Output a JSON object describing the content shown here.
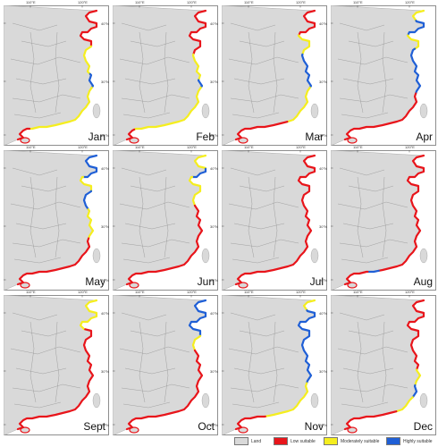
{
  "colors": {
    "land": "#d9d9d9",
    "sea": "#ffffff",
    "border": "#888888",
    "low": "#e8151b",
    "moderate": "#f5ee1f",
    "high": "#1f5fd6"
  },
  "axes": {
    "lon_ticks": [
      "110°E",
      "120°E"
    ],
    "lat_ticks": [
      "40°N",
      "30°N",
      "20°N"
    ]
  },
  "legend": [
    {
      "label": "Land",
      "color": "#d9d9d9"
    },
    {
      "label": "Low suitable",
      "color": "#e8151b"
    },
    {
      "label": "Moderately suitable",
      "color": "#f5ee1f"
    },
    {
      "label": "Highly suitable",
      "color": "#1f5fd6"
    }
  ],
  "panels": [
    {
      "month": "Jan",
      "segments": [
        {
          "class": "low",
          "from": 0,
          "to": 0.3
        },
        {
          "class": "moderate",
          "from": 0.3,
          "to": 0.45
        },
        {
          "class": "high",
          "from": 0.45,
          "to": 0.52
        },
        {
          "class": "moderate",
          "from": 0.52,
          "to": 0.9
        },
        {
          "class": "low",
          "from": 0.9,
          "to": 1
        }
      ]
    },
    {
      "month": "Feb",
      "segments": [
        {
          "class": "low",
          "from": 0,
          "to": 0.35
        },
        {
          "class": "moderate",
          "from": 0.35,
          "to": 0.48
        },
        {
          "class": "high",
          "from": 0.48,
          "to": 0.52
        },
        {
          "class": "moderate",
          "from": 0.52,
          "to": 0.92
        },
        {
          "class": "low",
          "from": 0.92,
          "to": 1
        }
      ]
    },
    {
      "month": "Mar",
      "segments": [
        {
          "class": "low",
          "from": 0,
          "to": 0.22
        },
        {
          "class": "moderate",
          "from": 0.22,
          "to": 0.35
        },
        {
          "class": "high",
          "from": 0.35,
          "to": 0.52
        },
        {
          "class": "moderate",
          "from": 0.52,
          "to": 0.72
        },
        {
          "class": "low",
          "from": 0.72,
          "to": 1
        }
      ]
    },
    {
      "month": "Apr",
      "segments": [
        {
          "class": "moderate",
          "from": 0,
          "to": 0.08
        },
        {
          "class": "high",
          "from": 0.08,
          "to": 0.22
        },
        {
          "class": "moderate",
          "from": 0.22,
          "to": 0.32
        },
        {
          "class": "high",
          "from": 0.32,
          "to": 0.55
        },
        {
          "class": "low",
          "from": 0.55,
          "to": 1
        }
      ]
    },
    {
      "month": "May",
      "segments": [
        {
          "class": "high",
          "from": 0,
          "to": 0.2
        },
        {
          "class": "moderate",
          "from": 0.2,
          "to": 0.3
        },
        {
          "class": "high",
          "from": 0.3,
          "to": 0.4
        },
        {
          "class": "moderate",
          "from": 0.4,
          "to": 0.55
        },
        {
          "class": "low",
          "from": 0.55,
          "to": 1
        }
      ]
    },
    {
      "month": "Jun",
      "segments": [
        {
          "class": "moderate",
          "from": 0,
          "to": 0.12
        },
        {
          "class": "high",
          "from": 0.12,
          "to": 0.2
        },
        {
          "class": "moderate",
          "from": 0.2,
          "to": 0.38
        },
        {
          "class": "low",
          "from": 0.38,
          "to": 1
        }
      ]
    },
    {
      "month": "Jul",
      "segments": [
        {
          "class": "low",
          "from": 0,
          "to": 1
        }
      ]
    },
    {
      "month": "Aug",
      "segments": [
        {
          "class": "low",
          "from": 0,
          "to": 0.8
        },
        {
          "class": "high",
          "from": 0.8,
          "to": 0.85
        },
        {
          "class": "low",
          "from": 0.85,
          "to": 1
        }
      ]
    },
    {
      "month": "Sept",
      "segments": [
        {
          "class": "moderate",
          "from": 0,
          "to": 0.25
        },
        {
          "class": "low",
          "from": 0.25,
          "to": 1
        }
      ]
    },
    {
      "month": "Oct",
      "segments": [
        {
          "class": "high",
          "from": 0,
          "to": 0.3
        },
        {
          "class": "moderate",
          "from": 0.3,
          "to": 0.38
        },
        {
          "class": "low",
          "from": 0.38,
          "to": 1
        }
      ]
    },
    {
      "month": "Nov",
      "segments": [
        {
          "class": "moderate",
          "from": 0,
          "to": 0.08
        },
        {
          "class": "high",
          "from": 0.08,
          "to": 0.55
        },
        {
          "class": "moderate",
          "from": 0.55,
          "to": 0.82
        },
        {
          "class": "low",
          "from": 0.82,
          "to": 1
        }
      ]
    },
    {
      "month": "Dec",
      "segments": [
        {
          "class": "low",
          "from": 0,
          "to": 0.48
        },
        {
          "class": "moderate",
          "from": 0.48,
          "to": 0.56
        },
        {
          "class": "high",
          "from": 0.56,
          "to": 0.62
        },
        {
          "class": "moderate",
          "from": 0.62,
          "to": 0.72
        },
        {
          "class": "low",
          "from": 0.72,
          "to": 1
        }
      ]
    }
  ]
}
